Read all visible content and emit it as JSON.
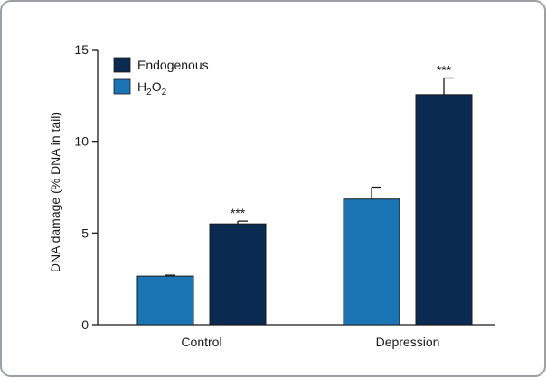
{
  "chart_data": {
    "type": "bar",
    "title": "",
    "xlabel": "",
    "ylabel": "DNA damage (% DNA in tail)",
    "ylim": [
      0,
      15
    ],
    "yticks": [
      0,
      5,
      10,
      15
    ],
    "categories": [
      "Control",
      "Depression"
    ],
    "series": [
      {
        "name": "H2O2",
        "legend_main": "H",
        "legend_sub1": "2",
        "legend_mid": "O",
        "legend_sub2": "2",
        "color": "#1b75b5",
        "values": [
          2.65,
          6.85
        ],
        "errors": [
          0.05,
          0.65
        ],
        "significance": [
          "",
          ""
        ]
      },
      {
        "name": "Endogenous",
        "color": "#0b2a52",
        "values": [
          5.5,
          12.55
        ],
        "errors": [
          0.15,
          0.9
        ],
        "significance": [
          "***",
          "***"
        ]
      }
    ],
    "grid": false,
    "legend_position": "top-left"
  }
}
